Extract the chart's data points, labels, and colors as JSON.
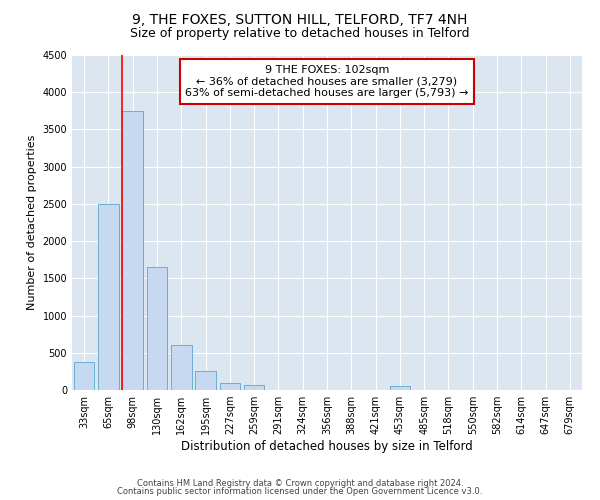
{
  "title1": "9, THE FOXES, SUTTON HILL, TELFORD, TF7 4NH",
  "title2": "Size of property relative to detached houses in Telford",
  "xlabel": "Distribution of detached houses by size in Telford",
  "ylabel": "Number of detached properties",
  "categories": [
    "33sqm",
    "65sqm",
    "98sqm",
    "130sqm",
    "162sqm",
    "195sqm",
    "227sqm",
    "259sqm",
    "291sqm",
    "324sqm",
    "356sqm",
    "388sqm",
    "421sqm",
    "453sqm",
    "485sqm",
    "518sqm",
    "550sqm",
    "582sqm",
    "614sqm",
    "647sqm",
    "679sqm"
  ],
  "values": [
    375,
    2500,
    3750,
    1650,
    600,
    250,
    100,
    70,
    0,
    0,
    0,
    0,
    0,
    60,
    0,
    0,
    0,
    0,
    0,
    0,
    0
  ],
  "bar_color": "#c6d9f0",
  "bar_edge_color": "#6baed6",
  "red_line_x": 2,
  "annotation_line1": "9 THE FOXES: 102sqm",
  "annotation_line2": "← 36% of detached houses are smaller (3,279)",
  "annotation_line3": "63% of semi-detached houses are larger (5,793) →",
  "annotation_box_color": "#ffffff",
  "annotation_box_edge": "#cc0000",
  "ylim": [
    0,
    4500
  ],
  "yticks": [
    0,
    500,
    1000,
    1500,
    2000,
    2500,
    3000,
    3500,
    4000,
    4500
  ],
  "footer1": "Contains HM Land Registry data © Crown copyright and database right 2024.",
  "footer2": "Contains public sector information licensed under the Open Government Licence v3.0.",
  "bg_color": "#ffffff",
  "plot_bg_color": "#dce6f1",
  "grid_color": "#ffffff",
  "title1_fontsize": 10,
  "title2_fontsize": 9,
  "tick_fontsize": 7,
  "ylabel_fontsize": 8,
  "xlabel_fontsize": 8.5,
  "annotation_fontsize": 8,
  "footer_fontsize": 6
}
